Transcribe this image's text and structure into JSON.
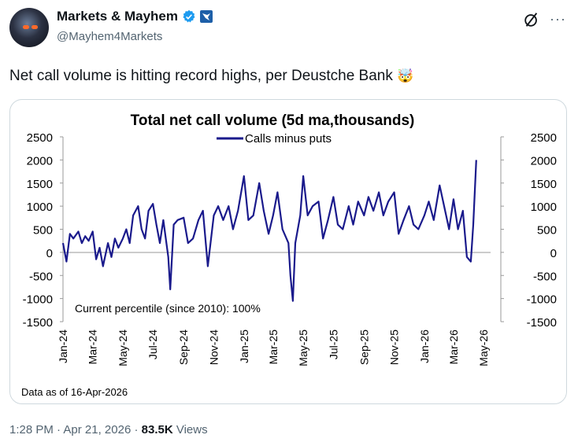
{
  "author": {
    "display_name": "Markets & Mayhem",
    "handle": "@Mayhem4Markets",
    "avatar_icon": "avatar-image",
    "verified_icon": "verified-badge-icon",
    "affiliation_icon": "affiliate-badge-icon"
  },
  "tweet": {
    "text": "Net call volume is hitting record highs, per Deustche Bank",
    "emoji": "🤯",
    "time": "1:28 PM",
    "date": "Apr 21, 2026",
    "views_count": "83.5K",
    "views_label": "Views",
    "sep": "·"
  },
  "header_icons": {
    "grok": "grok-icon",
    "more": "···"
  },
  "chart_data": {
    "type": "line",
    "title": "Total net call volume (5d ma,thousands)",
    "legend": "Calls minus puts",
    "legend_position": "top-center",
    "annotation": "Current percentile (since 2010): 100%",
    "footnote": "Data as of 16-Apr-2026",
    "ylim": [
      -1500,
      2500
    ],
    "yticks": [
      2500,
      2000,
      1500,
      1000,
      500,
      0,
      -500,
      -1000,
      -1500
    ],
    "yticks_right": [
      2500,
      2000,
      1500,
      1000,
      500,
      0,
      -500,
      -1000,
      -1500
    ],
    "xlim": [
      "2024-01-01",
      "2026-05-15"
    ],
    "xtick_labels": [
      "Jan-24",
      "Mar-24",
      "May-24",
      "Jul-24",
      "Sep-24",
      "Nov-24",
      "Jan-25",
      "Mar-25",
      "May-25",
      "Jul-25",
      "Sep-25",
      "Nov-25",
      "Jan-26",
      "Mar-26",
      "May-26"
    ],
    "xtick_dates": [
      "2024-01-01",
      "2024-03-01",
      "2024-05-01",
      "2024-07-01",
      "2024-09-01",
      "2024-11-01",
      "2025-01-01",
      "2025-03-01",
      "2025-05-01",
      "2025-07-01",
      "2025-09-01",
      "2025-11-01",
      "2026-01-01",
      "2026-03-01",
      "2026-05-01"
    ],
    "grid": false,
    "line_color": "#1a1a8c",
    "series": [
      {
        "name": "Calls minus puts",
        "x": [
          "2024-01-01",
          "2024-01-08",
          "2024-01-15",
          "2024-01-22",
          "2024-02-01",
          "2024-02-08",
          "2024-02-15",
          "2024-02-22",
          "2024-03-01",
          "2024-03-08",
          "2024-03-15",
          "2024-03-22",
          "2024-04-01",
          "2024-04-08",
          "2024-04-15",
          "2024-04-22",
          "2024-05-01",
          "2024-05-08",
          "2024-05-15",
          "2024-05-22",
          "2024-06-01",
          "2024-06-08",
          "2024-06-15",
          "2024-06-22",
          "2024-07-01",
          "2024-07-08",
          "2024-07-15",
          "2024-07-22",
          "2024-08-01",
          "2024-08-05",
          "2024-08-12",
          "2024-08-20",
          "2024-09-01",
          "2024-09-10",
          "2024-09-20",
          "2024-10-01",
          "2024-10-10",
          "2024-10-20",
          "2024-11-01",
          "2024-11-10",
          "2024-11-20",
          "2024-12-01",
          "2024-12-10",
          "2024-12-20",
          "2025-01-01",
          "2025-01-10",
          "2025-01-20",
          "2025-02-01",
          "2025-02-10",
          "2025-02-20",
          "2025-03-01",
          "2025-03-10",
          "2025-03-20",
          "2025-04-01",
          "2025-04-05",
          "2025-04-10",
          "2025-04-15",
          "2025-04-25",
          "2025-05-01",
          "2025-05-10",
          "2025-05-20",
          "2025-06-01",
          "2025-06-10",
          "2025-06-20",
          "2025-07-01",
          "2025-07-10",
          "2025-07-20",
          "2025-08-01",
          "2025-08-10",
          "2025-08-20",
          "2025-09-01",
          "2025-09-10",
          "2025-09-20",
          "2025-10-01",
          "2025-10-10",
          "2025-10-20",
          "2025-11-01",
          "2025-11-10",
          "2025-11-20",
          "2025-12-01",
          "2025-12-10",
          "2025-12-20",
          "2026-01-01",
          "2026-01-10",
          "2026-01-20",
          "2026-02-01",
          "2026-02-10",
          "2026-02-20",
          "2026-03-01",
          "2026-03-10",
          "2026-03-20",
          "2026-03-28",
          "2026-04-05",
          "2026-04-10",
          "2026-04-16"
        ],
        "y": [
          200,
          -200,
          400,
          300,
          450,
          200,
          350,
          250,
          450,
          -150,
          100,
          -300,
          200,
          -100,
          300,
          100,
          300,
          500,
          200,
          800,
          1000,
          500,
          300,
          900,
          1050,
          600,
          200,
          700,
          -100,
          -800,
          600,
          700,
          750,
          200,
          300,
          700,
          900,
          -300,
          800,
          1000,
          700,
          1000,
          500,
          900,
          1650,
          700,
          800,
          1500,
          900,
          400,
          800,
          1300,
          500,
          200,
          -500,
          -1050,
          200,
          800,
          1650,
          800,
          1000,
          1100,
          300,
          700,
          1200,
          600,
          500,
          1000,
          600,
          1100,
          800,
          1200,
          900,
          1300,
          800,
          1100,
          1300,
          400,
          700,
          1000,
          600,
          500,
          800,
          1100,
          700,
          1450,
          1000,
          500,
          1150,
          500,
          900,
          -100,
          -200,
          600,
          2000
        ]
      }
    ]
  }
}
